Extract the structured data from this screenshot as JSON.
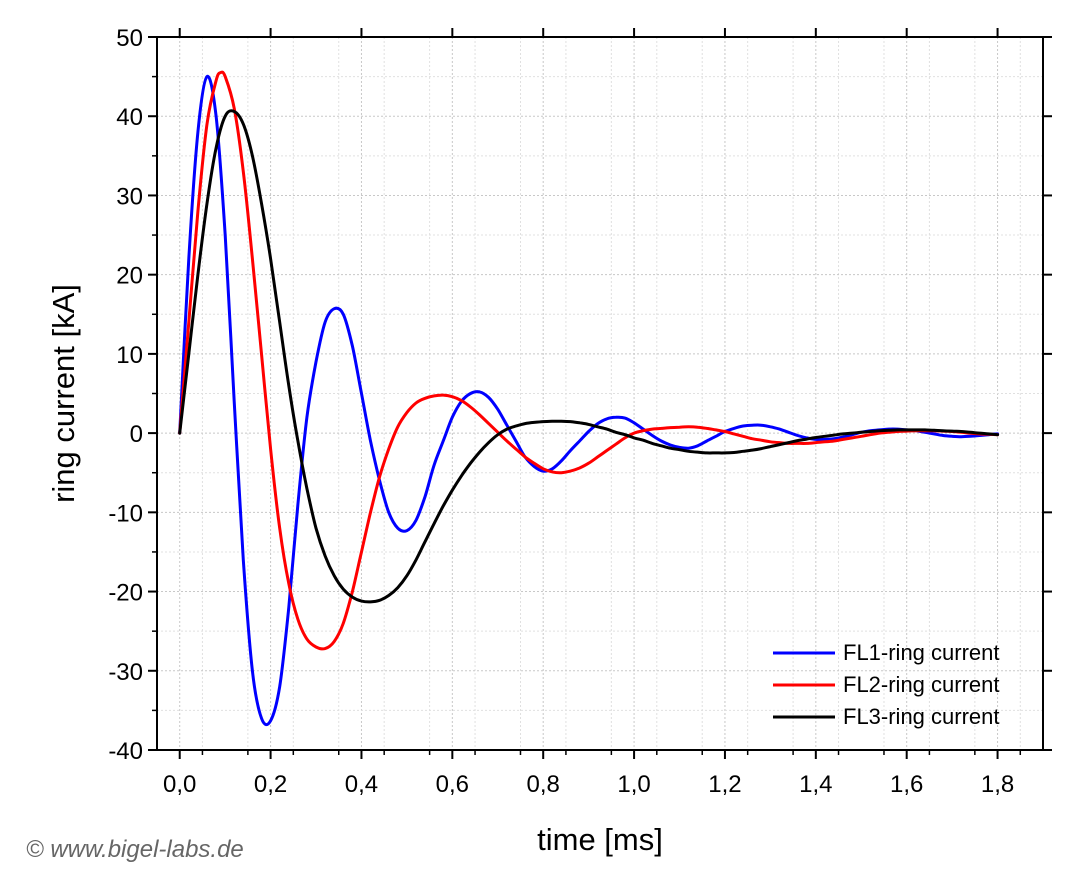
{
  "chart_data": {
    "type": "line",
    "xlabel": "time [ms]",
    "ylabel": "ring current [kA]",
    "xlim": [
      -0.05,
      1.9
    ],
    "ylim": [
      -40,
      50
    ],
    "x_ticks": [
      "0,0",
      "0,2",
      "0,4",
      "0,6",
      "0,8",
      "1,0",
      "1,2",
      "1,4",
      "1,6",
      "1,8"
    ],
    "x_tick_values": [
      0.0,
      0.2,
      0.4,
      0.6,
      0.8,
      1.0,
      1.2,
      1.4,
      1.6,
      1.8
    ],
    "y_ticks": [
      "-40",
      "-30",
      "-20",
      "-10",
      "0",
      "10",
      "20",
      "30",
      "40",
      "50"
    ],
    "y_tick_values": [
      -40,
      -30,
      -20,
      -10,
      0,
      10,
      20,
      30,
      40,
      50
    ],
    "grid": true,
    "legend_position": "bottom-right",
    "series": [
      {
        "name": "FL1-ring current",
        "color": "#0000ff",
        "points": [
          [
            0.0,
            0
          ],
          [
            0.02,
            22
          ],
          [
            0.04,
            38
          ],
          [
            0.06,
            45
          ],
          [
            0.08,
            40
          ],
          [
            0.1,
            25
          ],
          [
            0.12,
            4
          ],
          [
            0.14,
            -16
          ],
          [
            0.16,
            -30
          ],
          [
            0.18,
            -36
          ],
          [
            0.2,
            -36.3
          ],
          [
            0.22,
            -32
          ],
          [
            0.24,
            -22
          ],
          [
            0.26,
            -9
          ],
          [
            0.28,
            2
          ],
          [
            0.3,
            9
          ],
          [
            0.32,
            14
          ],
          [
            0.34,
            15.7
          ],
          [
            0.36,
            15
          ],
          [
            0.38,
            11
          ],
          [
            0.4,
            5
          ],
          [
            0.42,
            -1
          ],
          [
            0.44,
            -6
          ],
          [
            0.46,
            -10
          ],
          [
            0.48,
            -12
          ],
          [
            0.5,
            -12.3
          ],
          [
            0.52,
            -11
          ],
          [
            0.54,
            -8
          ],
          [
            0.56,
            -4
          ],
          [
            0.58,
            -1
          ],
          [
            0.6,
            2
          ],
          [
            0.62,
            4
          ],
          [
            0.64,
            5
          ],
          [
            0.66,
            5.2
          ],
          [
            0.68,
            4.5
          ],
          [
            0.7,
            3
          ],
          [
            0.72,
            1
          ],
          [
            0.74,
            -1
          ],
          [
            0.76,
            -3
          ],
          [
            0.78,
            -4.2
          ],
          [
            0.8,
            -4.8
          ],
          [
            0.82,
            -4.5
          ],
          [
            0.84,
            -3.5
          ],
          [
            0.86,
            -2.2
          ],
          [
            0.88,
            -1
          ],
          [
            0.9,
            0.2
          ],
          [
            0.92,
            1.2
          ],
          [
            0.94,
            1.8
          ],
          [
            0.96,
            2.0
          ],
          [
            0.98,
            1.9
          ],
          [
            1.0,
            1.3
          ],
          [
            1.02,
            0.5
          ],
          [
            1.04,
            -0.3
          ],
          [
            1.06,
            -1
          ],
          [
            1.08,
            -1.5
          ],
          [
            1.1,
            -1.8
          ],
          [
            1.12,
            -1.9
          ],
          [
            1.14,
            -1.6
          ],
          [
            1.16,
            -1.0
          ],
          [
            1.18,
            -0.4
          ],
          [
            1.2,
            0.2
          ],
          [
            1.22,
            0.6
          ],
          [
            1.24,
            0.9
          ],
          [
            1.26,
            1.0
          ],
          [
            1.28,
            1.0
          ],
          [
            1.3,
            0.8
          ],
          [
            1.32,
            0.5
          ],
          [
            1.34,
            0.1
          ],
          [
            1.36,
            -0.3
          ],
          [
            1.38,
            -0.6
          ],
          [
            1.4,
            -0.8
          ],
          [
            1.42,
            -0.8
          ],
          [
            1.44,
            -0.7
          ],
          [
            1.46,
            -0.5
          ],
          [
            1.48,
            -0.2
          ],
          [
            1.5,
            0.1
          ],
          [
            1.52,
            0.3
          ],
          [
            1.54,
            0.4
          ],
          [
            1.56,
            0.5
          ],
          [
            1.58,
            0.5
          ],
          [
            1.6,
            0.4
          ],
          [
            1.62,
            0.3
          ],
          [
            1.64,
            0.1
          ],
          [
            1.66,
            -0.1
          ],
          [
            1.68,
            -0.3
          ],
          [
            1.7,
            -0.4
          ],
          [
            1.72,
            -0.45
          ],
          [
            1.74,
            -0.4
          ],
          [
            1.76,
            -0.3
          ],
          [
            1.78,
            -0.2
          ],
          [
            1.8,
            -0.1
          ]
        ]
      },
      {
        "name": "FL2-ring current",
        "color": "#ff0000",
        "points": [
          [
            0.0,
            0
          ],
          [
            0.02,
            14
          ],
          [
            0.04,
            28
          ],
          [
            0.06,
            39
          ],
          [
            0.08,
            44.5
          ],
          [
            0.09,
            45.5
          ],
          [
            0.1,
            45
          ],
          [
            0.12,
            41
          ],
          [
            0.14,
            33
          ],
          [
            0.16,
            22
          ],
          [
            0.18,
            10
          ],
          [
            0.2,
            -2
          ],
          [
            0.22,
            -12
          ],
          [
            0.24,
            -19
          ],
          [
            0.26,
            -23.5
          ],
          [
            0.28,
            -26
          ],
          [
            0.3,
            -27
          ],
          [
            0.32,
            -27.2
          ],
          [
            0.34,
            -26.3
          ],
          [
            0.36,
            -24
          ],
          [
            0.38,
            -20
          ],
          [
            0.4,
            -15
          ],
          [
            0.42,
            -10
          ],
          [
            0.44,
            -5.5
          ],
          [
            0.46,
            -2
          ],
          [
            0.48,
            0.8
          ],
          [
            0.5,
            2.6
          ],
          [
            0.52,
            3.8
          ],
          [
            0.54,
            4.4
          ],
          [
            0.56,
            4.7
          ],
          [
            0.58,
            4.8
          ],
          [
            0.6,
            4.6
          ],
          [
            0.62,
            4.1
          ],
          [
            0.64,
            3.3
          ],
          [
            0.66,
            2.3
          ],
          [
            0.68,
            1.2
          ],
          [
            0.7,
            0.1
          ],
          [
            0.72,
            -1
          ],
          [
            0.74,
            -2
          ],
          [
            0.76,
            -3
          ],
          [
            0.78,
            -3.8
          ],
          [
            0.8,
            -4.5
          ],
          [
            0.82,
            -4.9
          ],
          [
            0.84,
            -5.0
          ],
          [
            0.86,
            -4.8
          ],
          [
            0.88,
            -4.4
          ],
          [
            0.9,
            -3.8
          ],
          [
            0.92,
            -3.0
          ],
          [
            0.94,
            -2.2
          ],
          [
            0.96,
            -1.4
          ],
          [
            0.98,
            -0.6
          ],
          [
            1.0,
            0
          ],
          [
            1.02,
            0.3
          ],
          [
            1.04,
            0.5
          ],
          [
            1.06,
            0.6
          ],
          [
            1.08,
            0.7
          ],
          [
            1.1,
            0.75
          ],
          [
            1.12,
            0.8
          ],
          [
            1.14,
            0.75
          ],
          [
            1.16,
            0.6
          ],
          [
            1.18,
            0.4
          ],
          [
            1.2,
            0.2
          ],
          [
            1.22,
            -0.1
          ],
          [
            1.24,
            -0.4
          ],
          [
            1.26,
            -0.7
          ],
          [
            1.28,
            -0.9
          ],
          [
            1.3,
            -1.1
          ],
          [
            1.32,
            -1.2
          ],
          [
            1.34,
            -1.3
          ],
          [
            1.36,
            -1.3
          ],
          [
            1.38,
            -1.3
          ],
          [
            1.4,
            -1.2
          ],
          [
            1.42,
            -1.1
          ],
          [
            1.44,
            -1.0
          ],
          [
            1.46,
            -0.8
          ],
          [
            1.48,
            -0.6
          ],
          [
            1.5,
            -0.4
          ],
          [
            1.52,
            -0.2
          ],
          [
            1.54,
            0
          ],
          [
            1.56,
            0.1
          ],
          [
            1.58,
            0.2
          ],
          [
            1.6,
            0.25
          ],
          [
            1.62,
            0.3
          ],
          [
            1.64,
            0.3
          ],
          [
            1.66,
            0.3
          ],
          [
            1.68,
            0.25
          ],
          [
            1.7,
            0.2
          ],
          [
            1.72,
            0.1
          ],
          [
            1.74,
            0
          ],
          [
            1.76,
            -0.1
          ],
          [
            1.78,
            -0.15
          ],
          [
            1.8,
            -0.2
          ]
        ]
      },
      {
        "name": "FL3-ring current",
        "color": "#000000",
        "points": [
          [
            0.0,
            0
          ],
          [
            0.02,
            10
          ],
          [
            0.04,
            20
          ],
          [
            0.06,
            29
          ],
          [
            0.08,
            36
          ],
          [
            0.1,
            40
          ],
          [
            0.12,
            40.6
          ],
          [
            0.14,
            39
          ],
          [
            0.16,
            35
          ],
          [
            0.18,
            29
          ],
          [
            0.2,
            22
          ],
          [
            0.22,
            14
          ],
          [
            0.24,
            6
          ],
          [
            0.26,
            -1
          ],
          [
            0.28,
            -7
          ],
          [
            0.3,
            -12
          ],
          [
            0.32,
            -15.5
          ],
          [
            0.34,
            -18
          ],
          [
            0.36,
            -19.7
          ],
          [
            0.38,
            -20.7
          ],
          [
            0.4,
            -21.2
          ],
          [
            0.42,
            -21.3
          ],
          [
            0.44,
            -21.1
          ],
          [
            0.46,
            -20.5
          ],
          [
            0.48,
            -19.5
          ],
          [
            0.5,
            -18
          ],
          [
            0.52,
            -16
          ],
          [
            0.54,
            -13.7
          ],
          [
            0.56,
            -11.4
          ],
          [
            0.58,
            -9.2
          ],
          [
            0.6,
            -7.2
          ],
          [
            0.62,
            -5.4
          ],
          [
            0.64,
            -3.8
          ],
          [
            0.66,
            -2.4
          ],
          [
            0.68,
            -1.2
          ],
          [
            0.7,
            -0.2
          ],
          [
            0.72,
            0.5
          ],
          [
            0.74,
            0.9
          ],
          [
            0.76,
            1.2
          ],
          [
            0.78,
            1.35
          ],
          [
            0.8,
            1.45
          ],
          [
            0.82,
            1.5
          ],
          [
            0.84,
            1.5
          ],
          [
            0.86,
            1.45
          ],
          [
            0.88,
            1.3
          ],
          [
            0.9,
            1.1
          ],
          [
            0.92,
            0.8
          ],
          [
            0.94,
            0.5
          ],
          [
            0.96,
            0.1
          ],
          [
            0.98,
            -0.2
          ],
          [
            1.0,
            -0.6
          ],
          [
            1.02,
            -0.9
          ],
          [
            1.04,
            -1.3
          ],
          [
            1.06,
            -1.6
          ],
          [
            1.08,
            -1.9
          ],
          [
            1.1,
            -2.1
          ],
          [
            1.12,
            -2.3
          ],
          [
            1.14,
            -2.4
          ],
          [
            1.16,
            -2.5
          ],
          [
            1.18,
            -2.5
          ],
          [
            1.2,
            -2.5
          ],
          [
            1.22,
            -2.45
          ],
          [
            1.24,
            -2.3
          ],
          [
            1.26,
            -2.15
          ],
          [
            1.28,
            -1.95
          ],
          [
            1.3,
            -1.7
          ],
          [
            1.32,
            -1.45
          ],
          [
            1.34,
            -1.2
          ],
          [
            1.36,
            -0.95
          ],
          [
            1.38,
            -0.75
          ],
          [
            1.4,
            -0.55
          ],
          [
            1.42,
            -0.4
          ],
          [
            1.44,
            -0.25
          ],
          [
            1.46,
            -0.1
          ],
          [
            1.48,
            0
          ],
          [
            1.5,
            0.1
          ],
          [
            1.52,
            0.2
          ],
          [
            1.54,
            0.3
          ],
          [
            1.56,
            0.35
          ],
          [
            1.58,
            0.4
          ],
          [
            1.6,
            0.4
          ],
          [
            1.62,
            0.4
          ],
          [
            1.64,
            0.4
          ],
          [
            1.66,
            0.35
          ],
          [
            1.68,
            0.3
          ],
          [
            1.7,
            0.25
          ],
          [
            1.72,
            0.2
          ],
          [
            1.74,
            0.1
          ],
          [
            1.76,
            0
          ],
          [
            1.78,
            -0.1
          ],
          [
            1.8,
            -0.2
          ]
        ]
      }
    ]
  },
  "copyright": "© www.bigel-labs.de"
}
